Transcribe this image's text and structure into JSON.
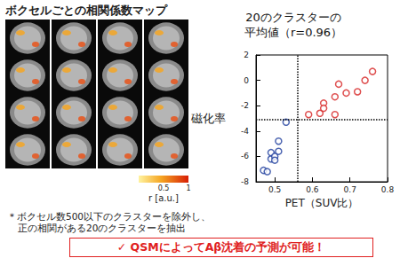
{
  "header": {
    "title": "ボクセルごとの相関係数マップ"
  },
  "colorbar": {
    "label": "r [a.u.]",
    "range": [
      0,
      1
    ],
    "ticks": [
      0.5,
      1
    ]
  },
  "footnote": [
    "＊ボクセル数500以下のクラスターを除外し、",
    "正の相関がある20のクラスターを抽出"
  ],
  "banner": "✓ QSMによってAβ沈着の予測が可能！",
  "chart_data": {
    "type": "scatter",
    "title": "20のクラスターの\n平均値（r=0.96）",
    "x_label": "PET（SUV比）",
    "y_label": "磁化率",
    "xlim": [
      0.45,
      0.8
    ],
    "xticks": [
      0.5,
      0.6,
      0.7,
      0.8
    ],
    "ylim": [
      -8,
      2
    ],
    "yticks": [
      -8,
      -6,
      -4,
      -2,
      0,
      2
    ],
    "grid": false,
    "vline": {
      "value": 0.56,
      "line_style": "dotted"
    },
    "hline": {
      "value": -3.1,
      "line_style": "dotted"
    },
    "series": [
      {
        "color": "#1f3f9e",
        "marker": "open_circle",
        "x": [
          0.47,
          0.48,
          0.49,
          0.49,
          0.5,
          0.5,
          0.51,
          0.51,
          0.53
        ],
        "values": [
          -7.1,
          -7.2,
          -6.2,
          -5.7,
          -6.0,
          -6.3,
          -5.6,
          -4.8,
          -3.3
        ]
      },
      {
        "color": "#d62020",
        "marker": "open_circle",
        "x": [
          0.59,
          0.62,
          0.63,
          0.63,
          0.66,
          0.66,
          0.67,
          0.69,
          0.72,
          0.74,
          0.76
        ],
        "values": [
          -2.7,
          -2.6,
          -1.8,
          -2.2,
          -1.3,
          -2.7,
          -0.3,
          -1.0,
          -0.9,
          0.0,
          0.7
        ]
      }
    ]
  }
}
